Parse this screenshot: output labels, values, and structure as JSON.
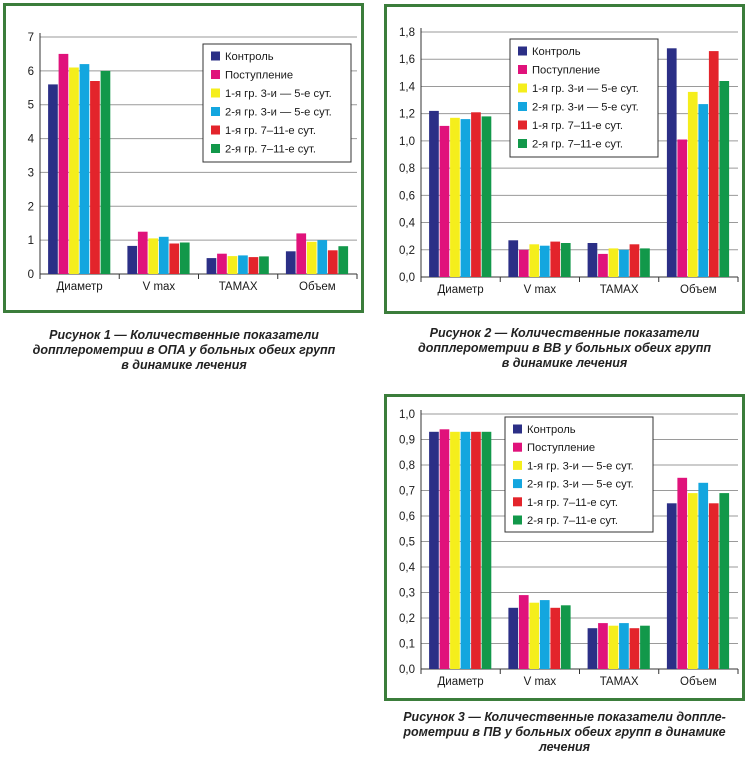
{
  "colors": [
    "#2b2f86",
    "#e0127b",
    "#f5ee1c",
    "#13a6df",
    "#e3242b",
    "#12984a"
  ],
  "legend_labels": [
    "Контроль",
    "Поступление",
    "1-я гр. 3-и — 5-е сут.",
    "2-я гр. 3-и — 5-е сут.",
    "1-я гр. 7–11-е сут.",
    "2-я гр. 7–11-е сут."
  ],
  "categories": [
    "Диаметр",
    "V max",
    "TAMAX",
    "Объем"
  ],
  "captions": [
    [
      "Рисунок 1 — Количественные показатели",
      "допплерометрии в ОПА у больных обеих групп",
      "в динамике лечения"
    ],
    [
      "Рисунок 2 — Количественные показатели",
      "допплерометрии в ВВ у больных обеих групп",
      "в динамике лечения"
    ],
    [
      "Рисунок 3 — Количественные показатели доппле-",
      "рометрии в ПВ у больных обеих групп в динамике",
      "лечения"
    ]
  ],
  "chart_data": [
    {
      "type": "bar",
      "categories": [
        "Диаметр",
        "V max",
        "TAMAX",
        "Объем"
      ],
      "ylim": [
        0,
        7
      ],
      "ytick_step": 1,
      "ytick_decimals": 0,
      "grid": true,
      "legend": "top-right",
      "series": [
        {
          "name": "Контроль",
          "values": [
            5.6,
            0.83,
            0.47,
            0.67
          ]
        },
        {
          "name": "Поступление",
          "values": [
            6.5,
            1.25,
            0.6,
            1.2
          ]
        },
        {
          "name": "1-я гр. 3-и — 5-е сут.",
          "values": [
            6.1,
            1.05,
            0.53,
            0.95
          ]
        },
        {
          "name": "2-я гр. 3-и — 5-е сут.",
          "values": [
            6.2,
            1.1,
            0.55,
            1.0
          ]
        },
        {
          "name": "1-я гр. 7–11-е сут.",
          "values": [
            5.7,
            0.9,
            0.5,
            0.7
          ]
        },
        {
          "name": "2-я гр. 7–11-е сут.",
          "values": [
            6.0,
            0.93,
            0.52,
            0.82
          ]
        }
      ]
    },
    {
      "type": "bar",
      "categories": [
        "Диаметр",
        "V max",
        "TAMAX",
        "Объем"
      ],
      "ylim": [
        0,
        1.8
      ],
      "ytick_step": 0.2,
      "ytick_decimals": 1,
      "grid": true,
      "legend": "top-right",
      "series": [
        {
          "name": "Контроль",
          "values": [
            1.22,
            0.27,
            0.25,
            1.68
          ]
        },
        {
          "name": "Поступление",
          "values": [
            1.11,
            0.2,
            0.17,
            1.01
          ]
        },
        {
          "name": "1-я гр. 3-и — 5-е сут.",
          "values": [
            1.17,
            0.24,
            0.21,
            1.36
          ]
        },
        {
          "name": "2-я гр. 3-и — 5-е сут.",
          "values": [
            1.16,
            0.23,
            0.2,
            1.27
          ]
        },
        {
          "name": "1-я гр. 7–11-е сут.",
          "values": [
            1.21,
            0.26,
            0.24,
            1.66
          ]
        },
        {
          "name": "2-я гр. 7–11-е сут.",
          "values": [
            1.18,
            0.25,
            0.21,
            1.44
          ]
        }
      ]
    },
    {
      "type": "bar",
      "categories": [
        "Диаметр",
        "V max",
        "TAMAX",
        "Объем"
      ],
      "ylim": [
        0,
        1.0
      ],
      "ytick_step": 0.1,
      "ytick_decimals": 1,
      "grid": true,
      "legend": "top-right",
      "series": [
        {
          "name": "Контроль",
          "values": [
            0.93,
            0.24,
            0.16,
            0.65
          ]
        },
        {
          "name": "Поступление",
          "values": [
            0.94,
            0.29,
            0.18,
            0.75
          ]
        },
        {
          "name": "1-я гр. 3-и — 5-е сут.",
          "values": [
            0.93,
            0.26,
            0.17,
            0.69
          ]
        },
        {
          "name": "2-я гр. 3-и — 5-е сут.",
          "values": [
            0.93,
            0.27,
            0.18,
            0.73
          ]
        },
        {
          "name": "1-я гр. 7–11-е сут.",
          "values": [
            0.93,
            0.24,
            0.16,
            0.65
          ]
        },
        {
          "name": "2-я гр. 7–11-е сут.",
          "values": [
            0.93,
            0.25,
            0.17,
            0.69
          ]
        }
      ]
    }
  ]
}
